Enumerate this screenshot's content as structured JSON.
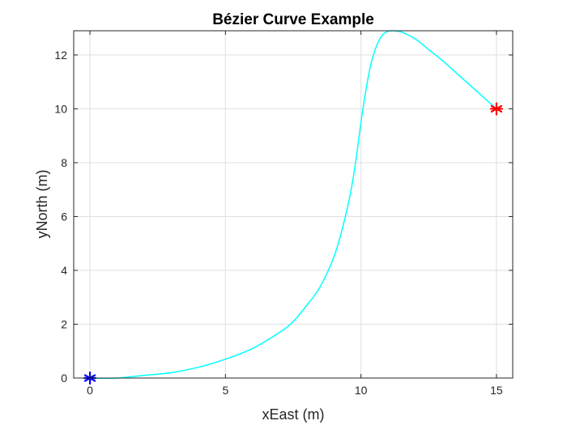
{
  "colors": {
    "background": "#ffffff",
    "grid": "#dfdfdf",
    "axis": "#262626",
    "curve": "#00ffff",
    "start_marker": "#0000ff",
    "end_marker": "#ff0000"
  },
  "chart_data": {
    "type": "line",
    "title": "Bézier Curve Example",
    "xlabel": "xEast (m)",
    "ylabel": "yNorth (m)",
    "xlim": [
      -0.6,
      15.6
    ],
    "ylim": [
      0,
      12.9
    ],
    "grid": true,
    "xticks": [
      0,
      5,
      10,
      15
    ],
    "yticks": [
      0,
      2,
      4,
      6,
      8,
      10,
      12
    ],
    "xtick_labels": [
      "0",
      "5",
      "10",
      "15"
    ],
    "ytick_labels": [
      "0",
      "2",
      "4",
      "6",
      "8",
      "10",
      "12"
    ],
    "series": [
      {
        "style": "line",
        "color": "#00ffff",
        "x": [
          0,
          1,
          2,
          3,
          4,
          5,
          6,
          7,
          7.5,
          8,
          8.5,
          9,
          9.3,
          9.6,
          9.8,
          10,
          10.2,
          10.4,
          10.6,
          10.8,
          11,
          11.2,
          11.5,
          12,
          12.5,
          13,
          13.5,
          14,
          14.5,
          15
        ],
        "y": [
          0,
          0,
          0.1,
          0.2,
          0.4,
          0.7,
          1.1,
          1.7,
          2.1,
          2.7,
          3.4,
          4.5,
          5.5,
          6.8,
          8.0,
          9.5,
          10.8,
          11.8,
          12.4,
          12.75,
          12.88,
          12.9,
          12.85,
          12.6,
          12.2,
          11.8,
          11.35,
          10.9,
          10.45,
          10.0
        ]
      }
    ],
    "markers": [
      {
        "name": "start",
        "x": 0,
        "y": 0,
        "symbol": "*",
        "color": "#0000ff"
      },
      {
        "name": "end",
        "x": 15,
        "y": 10,
        "symbol": "*",
        "color": "#ff0000"
      }
    ]
  }
}
